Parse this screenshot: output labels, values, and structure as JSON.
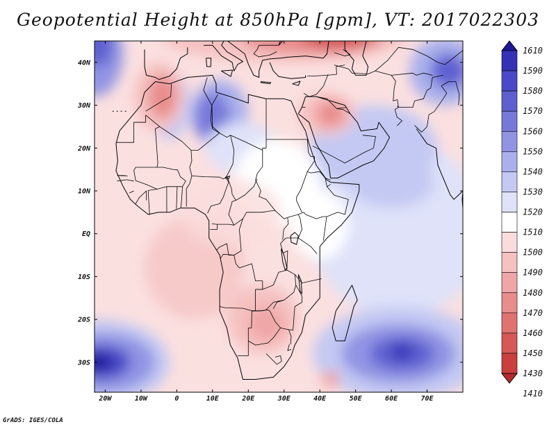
{
  "title": "Geopotential Height at 850hPa [gpm], VT: 2017022303",
  "credit": "GrADS: IGES/COLA",
  "map": {
    "lon_range": [
      -23,
      80
    ],
    "lat_range": [
      -37,
      45
    ],
    "lon_ticks": [
      {
        "lon": -20,
        "label": "20W"
      },
      {
        "lon": -10,
        "label": "10W"
      },
      {
        "lon": 0,
        "label": "0"
      },
      {
        "lon": 10,
        "label": "10E"
      },
      {
        "lon": 20,
        "label": "20E"
      },
      {
        "lon": 30,
        "label": "30E"
      },
      {
        "lon": 40,
        "label": "40E"
      },
      {
        "lon": 50,
        "label": "50E"
      },
      {
        "lon": 60,
        "label": "60E"
      },
      {
        "lon": 70,
        "label": "70E"
      }
    ],
    "lat_ticks": [
      {
        "lat": 40,
        "label": "40N"
      },
      {
        "lat": 30,
        "label": "30N"
      },
      {
        "lat": 20,
        "label": "20N"
      },
      {
        "lat": 10,
        "label": "10N"
      },
      {
        "lat": 0,
        "label": "EQ"
      },
      {
        "lat": -10,
        "label": "10S"
      },
      {
        "lat": -20,
        "label": "20S"
      },
      {
        "lat": -30,
        "label": "30S"
      }
    ],
    "features": [
      {
        "name": "north-atlantic-low",
        "lon": -22,
        "lat": 43,
        "value": 1575
      },
      {
        "name": "morocco-high",
        "lon": -5,
        "lat": 31,
        "value": 1480
      },
      {
        "name": "algeria-sahara-low",
        "lon": 10,
        "lat": 28,
        "value": 1560
      },
      {
        "name": "europe-mediterranean-high",
        "lon": 40,
        "lat": 44,
        "value": 1455
      },
      {
        "name": "arabia-high",
        "lon": 43,
        "lat": 28,
        "value": 1480
      },
      {
        "name": "central-asia-low",
        "lon": 75,
        "lat": 38,
        "value": 1590
      },
      {
        "name": "south-atlantic-low",
        "lon": -20,
        "lat": -30,
        "value": 1590
      },
      {
        "name": "south-indian-low",
        "lon": 63,
        "lat": -28,
        "value": 1580
      },
      {
        "name": "southern-africa-high",
        "lon": 25,
        "lat": -21,
        "value": 1475
      },
      {
        "name": "mozambique-channel-high",
        "lon": 43,
        "lat": -34,
        "value": 1480
      }
    ]
  },
  "colorbar": {
    "levels": [
      "1610",
      "1590",
      "1580",
      "1570",
      "1560",
      "1550",
      "1540",
      "1530",
      "1520",
      "1510",
      "1500",
      "1490",
      "1480",
      "1470",
      "1460",
      "1450",
      "1430",
      "1410"
    ],
    "colors": [
      "#1c1896",
      "#3431b6",
      "#4a4ac8",
      "#5e60d0",
      "#7779da",
      "#9194e3",
      "#aab0ec",
      "#c4c9f3",
      "#dfe2f9",
      "#ffffff",
      "#fbdcdc",
      "#f5c1c1",
      "#efa6a6",
      "#e88c8c",
      "#e07272",
      "#d65858",
      "#ca3e3e",
      "#b72a2a"
    ]
  }
}
